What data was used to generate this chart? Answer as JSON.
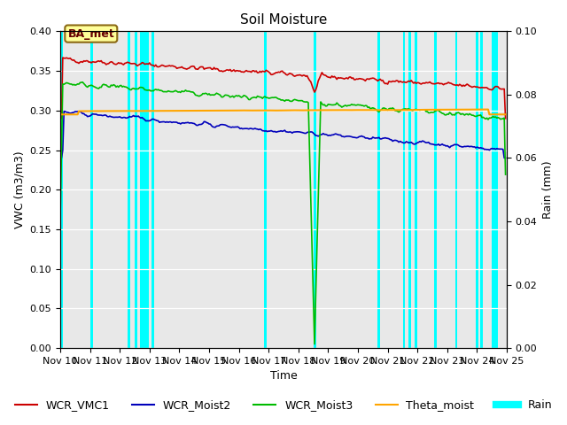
{
  "title": "Soil Moisture",
  "xlabel": "Time",
  "ylabel_left": "VWC (m3/m3)",
  "ylabel_right": "Rain (mm)",
  "ylim_left": [
    0.0,
    0.4
  ],
  "ylim_right": [
    0.0,
    0.1
  ],
  "yticks_left": [
    0.0,
    0.05,
    0.1,
    0.15,
    0.2,
    0.25,
    0.3,
    0.35,
    0.4
  ],
  "yticks_right": [
    0.0,
    0.02,
    0.04,
    0.06,
    0.08,
    0.1
  ],
  "background_color": "#e8e8e8",
  "station_label": "BA_met",
  "station_label_bg": "#ffff99",
  "station_label_border": "#8B6914",
  "cyan_color": "#00FFFF",
  "red_color": "#CC0000",
  "blue_color": "#0000BB",
  "green_color": "#00BB00",
  "orange_color": "#FFA500",
  "title_fontsize": 11,
  "axis_fontsize": 9,
  "tick_fontsize": 8,
  "legend_fontsize": 9,
  "rain_events": [
    0.05,
    1.05,
    2.3,
    2.55,
    2.8,
    2.95,
    3.1,
    6.9,
    8.55,
    10.7,
    11.55,
    11.75,
    11.95,
    12.6,
    13.3,
    14.0,
    14.15,
    14.6
  ],
  "rain_widths": [
    0.08,
    0.08,
    0.08,
    0.08,
    0.22,
    0.08,
    0.08,
    0.08,
    0.08,
    0.08,
    0.08,
    0.08,
    0.08,
    0.08,
    0.08,
    0.08,
    0.08,
    0.22
  ]
}
